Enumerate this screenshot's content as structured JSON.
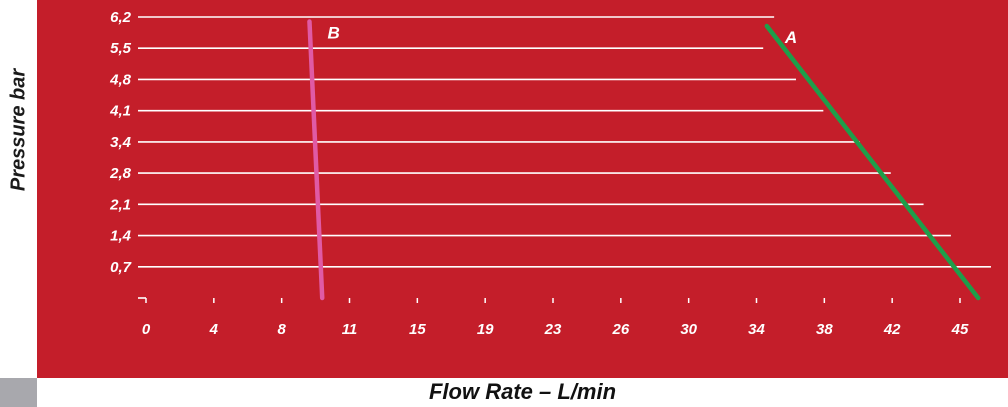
{
  "chart_data": {
    "type": "line",
    "ylabel": "Pressure bar",
    "xlabel": "Flow Rate – L/min",
    "y_ticks": [
      "6,2",
      "5,5",
      "4,8",
      "4,1",
      "3,4",
      "2,8",
      "2,1",
      "1,4",
      "0,7"
    ],
    "x_ticks": [
      "0",
      "4",
      "8",
      "11",
      "15",
      "19",
      "23",
      "26",
      "30",
      "34",
      "38",
      "42",
      "45"
    ],
    "gridline_right_ends": [
      34.2,
      36.0,
      37.5,
      39.5,
      41.2,
      43.0,
      44.5,
      46.0
    ],
    "series": [
      {
        "name": "A",
        "color": "#1e9e4a",
        "points": [
          [
            34.4,
            6.0
          ],
          [
            46.0,
            0.0
          ]
        ]
      },
      {
        "name": "B",
        "color": "#e05aa5",
        "points": [
          [
            9.3,
            6.1
          ],
          [
            10.0,
            0.0
          ]
        ]
      }
    ],
    "grid": true
  }
}
